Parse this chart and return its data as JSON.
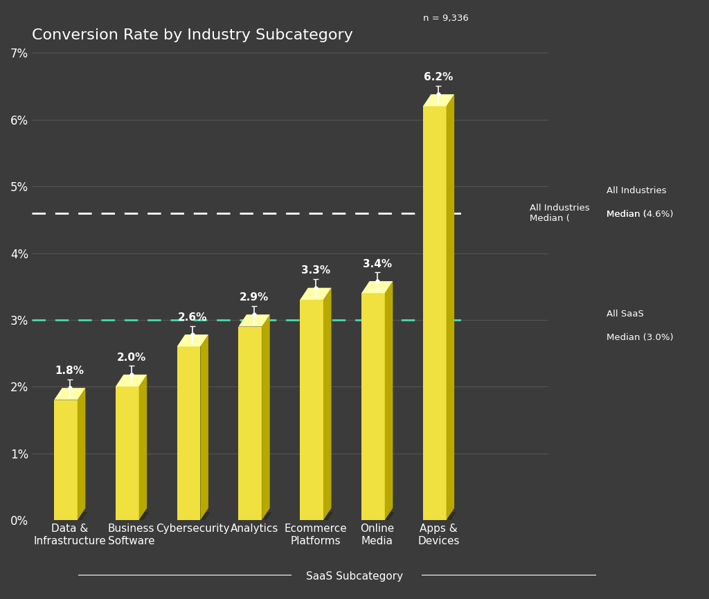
{
  "title": "Conversion Rate by Industry Subcategory",
  "categories": [
    "Data &\nInfrastructure",
    "Business\nSoftware",
    "Cybersecurity",
    "Analytics",
    "Ecommerce\nPlatforms",
    "Online\nMedia",
    "Apps &\nDevices"
  ],
  "values": [
    1.8,
    2.0,
    2.6,
    2.9,
    3.3,
    3.4,
    6.2
  ],
  "value_labels": [
    "1.8%",
    "2.0%",
    "2.6%",
    "2.9%",
    "3.3%",
    "3.4%",
    "6.2%"
  ],
  "xlabel": "SaaS Subcategory",
  "ylim": [
    0,
    7
  ],
  "yticks": [
    0,
    1,
    2,
    3,
    4,
    5,
    6,
    7
  ],
  "ytick_labels": [
    "0%",
    "1%",
    "2%",
    "3%",
    "4%",
    "5%",
    "6%",
    "7%"
  ],
  "bar_color_face": "#F0E040",
  "bar_color_side": "#B8A800",
  "bar_color_top": "#FEFFA8",
  "background_color": "#3b3b3b",
  "text_color": "#ffffff",
  "grid_color": "#555555",
  "all_industries_median": 4.6,
  "all_saas_median": 3.0,
  "all_industries_line_color": "#ffffff",
  "all_saas_line_color": "#4dd9ac",
  "n_label": "n = 9,336",
  "title_fontsize": 16,
  "label_fontsize": 11,
  "value_fontsize": 11,
  "tick_fontsize": 12
}
